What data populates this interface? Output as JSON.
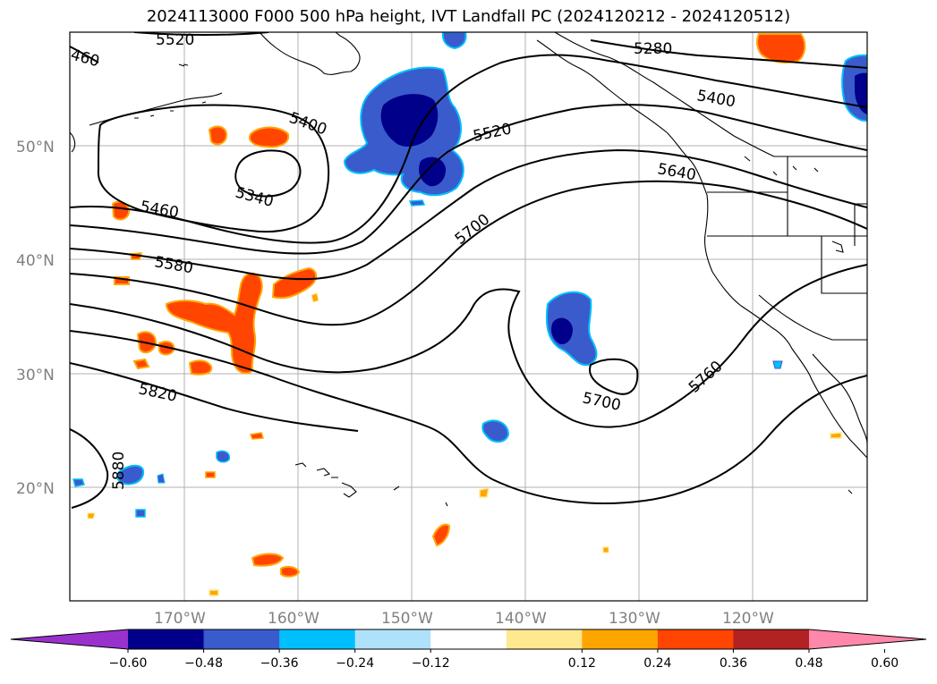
{
  "title": "2024113000 F000 500 hPa height, IVT Landfall PC (2024120212 - 2024120512)",
  "lat_labels": [
    "50°N",
    "40°N",
    "30°N",
    "20°N"
  ],
  "lon_labels": [
    "170°W",
    "160°W",
    "150°W",
    "140°W",
    "130°W",
    "120°W"
  ],
  "contour_labels": [
    "5520",
    "5280",
    "5400",
    "5400",
    "5520",
    "5340",
    "5640",
    "5460",
    "5700",
    "5580",
    "5700",
    "5760",
    "5820",
    "5880"
  ],
  "colorbar": {
    "ticks": [
      "−0.60",
      "−0.48",
      "−0.36",
      "−0.24",
      "−0.12",
      "0.12",
      "0.24",
      "0.36",
      "0.48",
      "0.60"
    ],
    "colors": [
      "#9932cc",
      "#00008b",
      "#3a5bcc",
      "#00bfff",
      "#aee2fa",
      "#ffffff",
      "#ffe98f",
      "#ffa500",
      "#ff4500",
      "#b22222",
      "#ff88aa"
    ],
    "extend": "both"
  }
}
